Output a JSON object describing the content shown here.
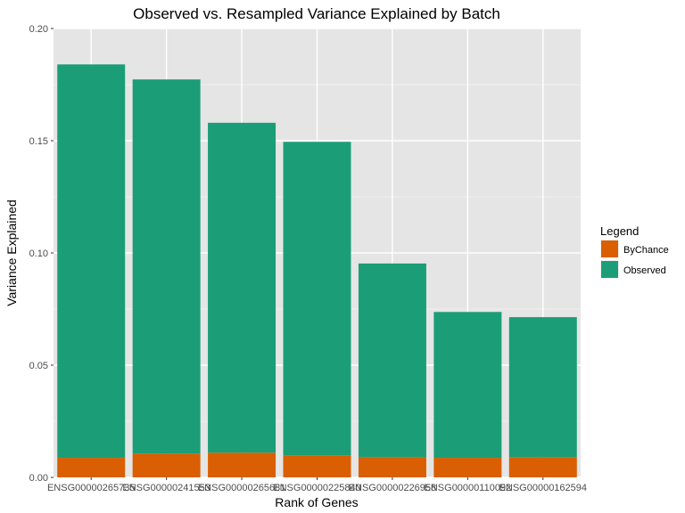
{
  "chart_data": {
    "type": "bar",
    "stacked": true,
    "title": "Observed vs. Resampled Variance Explained by Batch",
    "xlabel": "Rank of Genes",
    "ylabel": "Variance Explained",
    "ylim": [
      0,
      0.2
    ],
    "yticks": [
      "0.00",
      "0.05",
      "0.10",
      "0.15",
      "0.20"
    ],
    "ytick_values": [
      0,
      0.05,
      0.1,
      0.15,
      0.2
    ],
    "categories": [
      "ENSG00000265735",
      "ENSG00000241553",
      "ENSG00000265681",
      "ENSG00000225840",
      "ENSG00000226958",
      "ENSG00000110092",
      "ENSG00000162594"
    ],
    "series": [
      {
        "name": "ByChance",
        "values": [
          0.0087,
          0.0106,
          0.011,
          0.0098,
          0.0091,
          0.0087,
          0.009
        ]
      },
      {
        "name": "Observed",
        "values": [
          0.1753,
          0.1667,
          0.147,
          0.1397,
          0.0862,
          0.065,
          0.0624
        ]
      }
    ],
    "grid": true,
    "legend": {
      "title": "Legend",
      "position": "right"
    },
    "colors": {
      "ByChance": "#d95f02",
      "Observed": "#1b9e77",
      "panel": "#e5e5e5",
      "grid_major": "#ffffff",
      "grid_minor": "#f2f2f2"
    }
  }
}
